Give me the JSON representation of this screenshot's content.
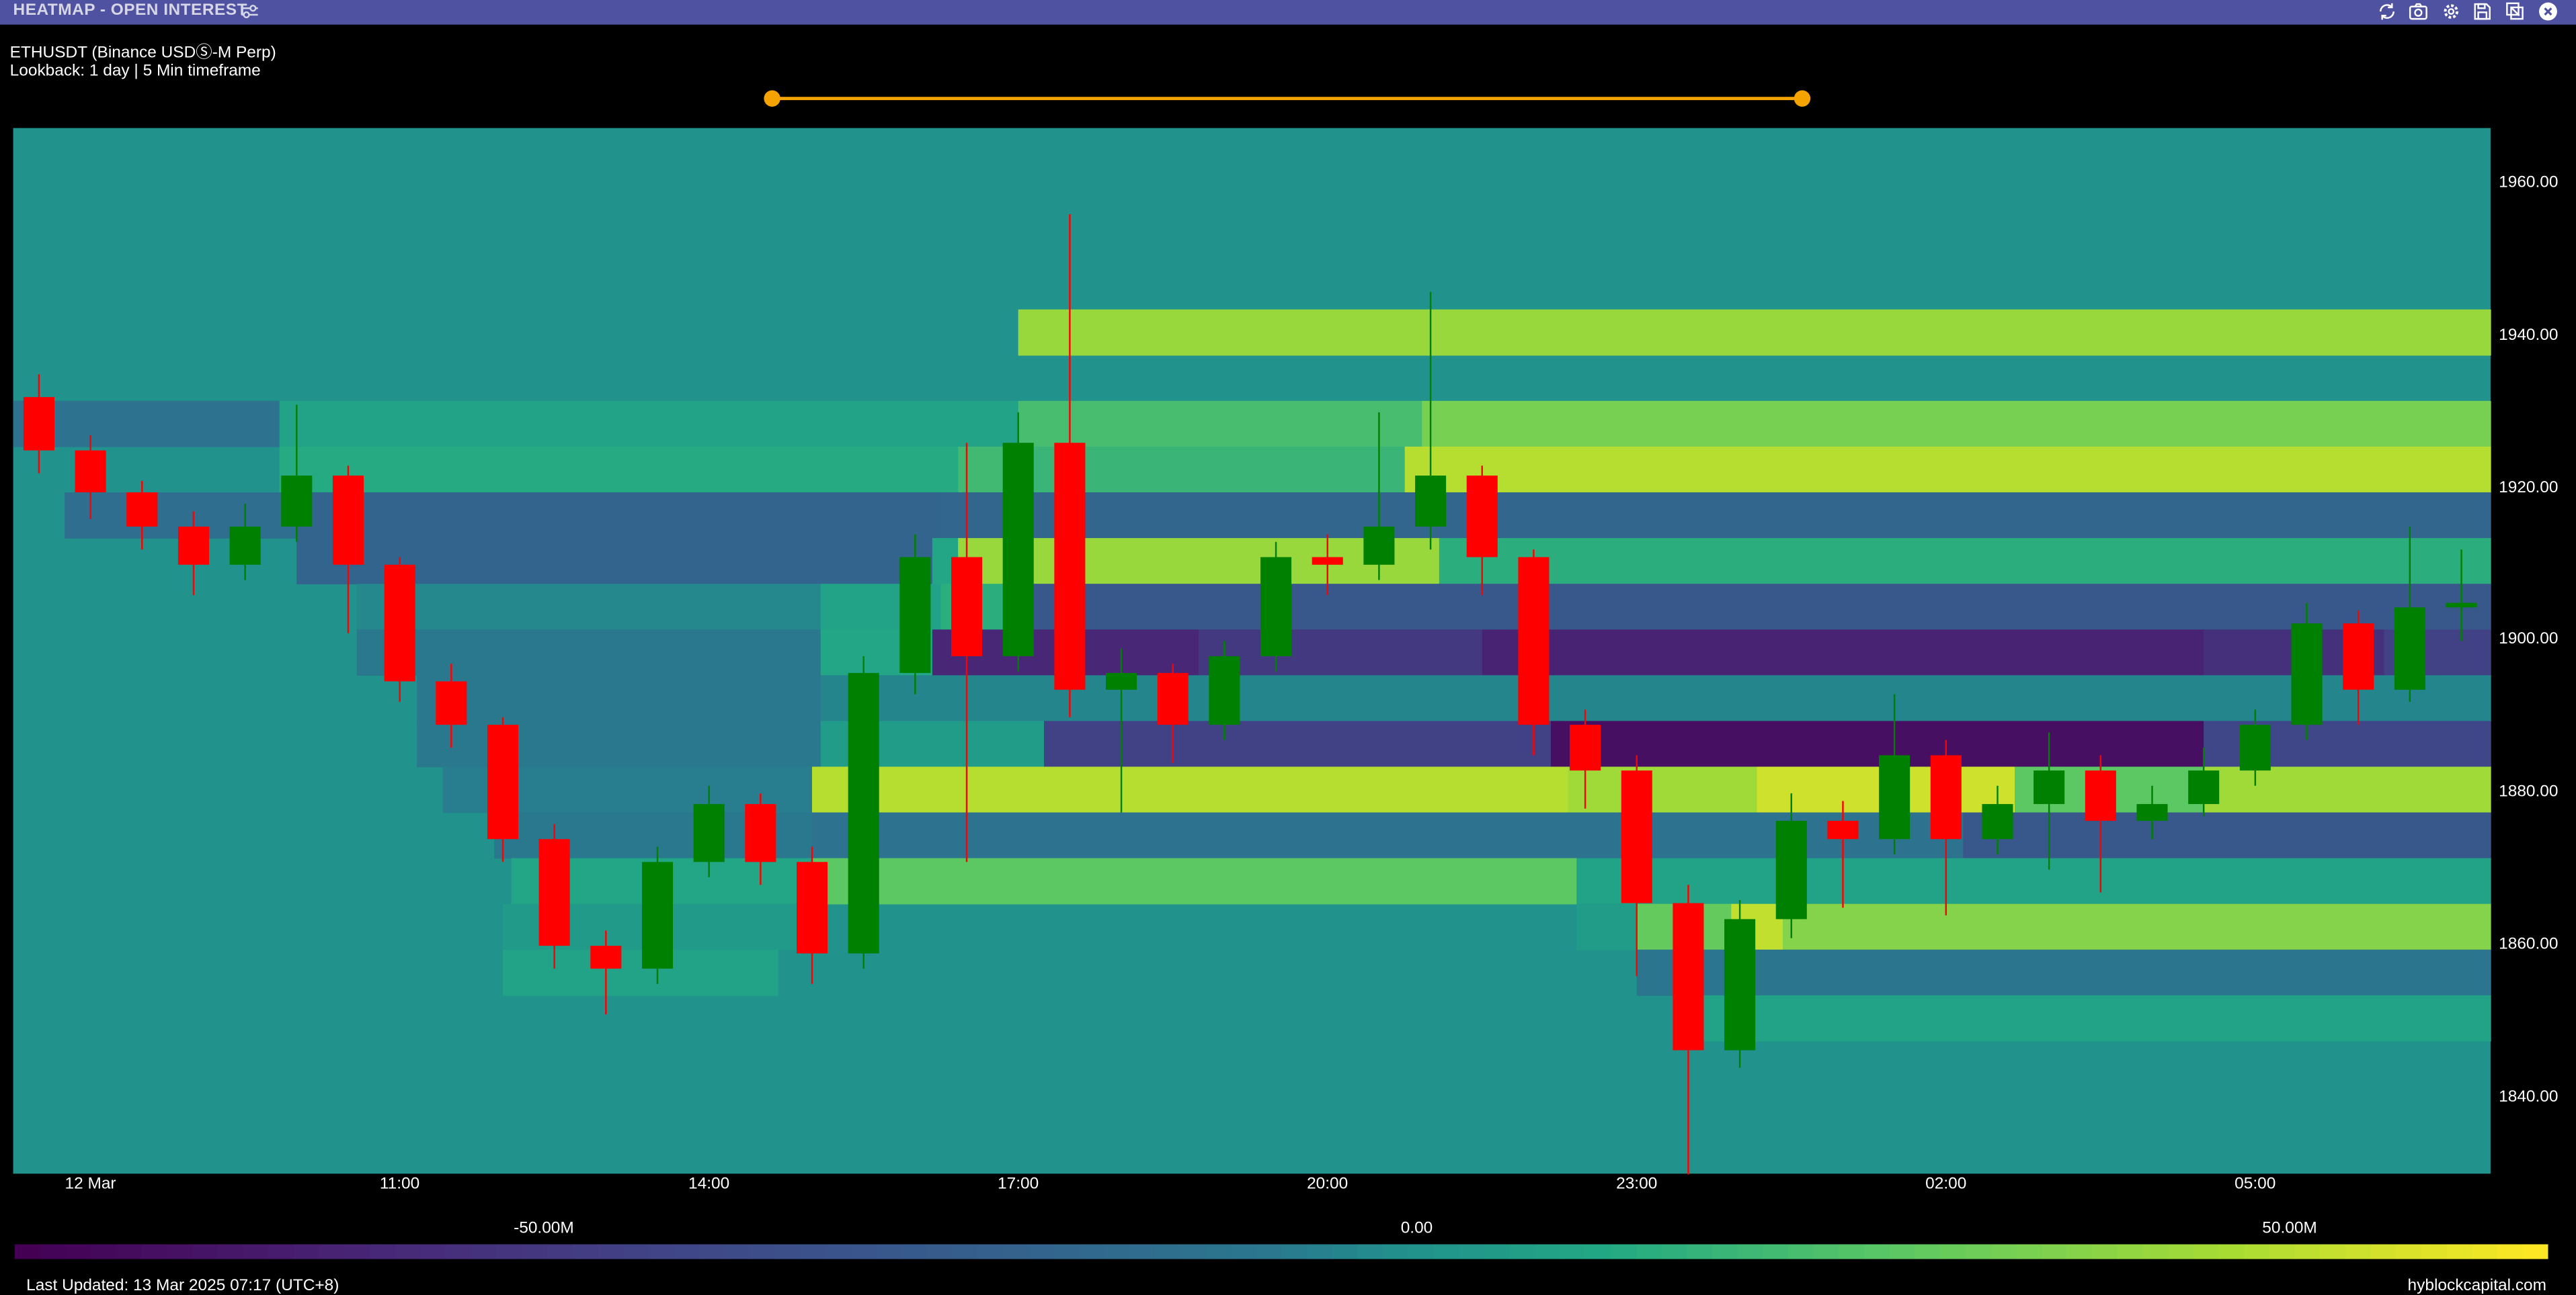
{
  "window": {
    "title": "HEATMAP - OPEN INTEREST",
    "color": "#4f52a0",
    "icons": [
      "sliders-icon",
      "refresh-icon",
      "camera-icon",
      "gear-icon",
      "save-icon",
      "popout-icon",
      "close-icon"
    ]
  },
  "header": {
    "instrument": "ETHUSDT (Binance USDⓈ-M Perp)",
    "lookback": "Lookback: 1 day | 5 Min timeframe"
  },
  "range_slider": {
    "color": "#f5a300"
  },
  "chart_data": {
    "type": "heatmap",
    "title": "",
    "ylim": [
      1830.1,
      1967.3
    ],
    "xlim": [
      "2025-03-12T07:15",
      "2025-03-13T07:17"
    ],
    "y_ticks": [
      "1960.00",
      "1940.00",
      "1920.00",
      "1900.00",
      "1880.00",
      "1860.00",
      "1840.00"
    ],
    "x_ticks": [
      {
        "time": "2025-03-12T08:00",
        "label": "12 Mar"
      },
      {
        "time": "2025-03-12T11:00",
        "label": "11:00"
      },
      {
        "time": "2025-03-12T14:00",
        "label": "14:00"
      },
      {
        "time": "2025-03-12T17:00",
        "label": "17:00"
      },
      {
        "time": "2025-03-12T20:00",
        "label": "20:00"
      },
      {
        "time": "2025-03-12T23:00",
        "label": "23:00"
      },
      {
        "time": "2025-03-13T02:00",
        "label": "02:00"
      },
      {
        "time": "2025-03-13T05:00",
        "label": "05:00"
      }
    ],
    "baseline_value": 0,
    "colorscale": "viridis",
    "color_range": [
      -80.3,
      64.8
    ],
    "colorbar_ticks": [
      {
        "value": -50,
        "label": "-50.00M"
      },
      {
        "value": 0,
        "label": "0.00"
      },
      {
        "value": 50,
        "label": "50.00M"
      }
    ],
    "cells": [
      [
        1937.5,
        1943.5,
        "2025-03-12T17:00",
        "2025-03-13T07:17",
        43
      ],
      [
        1925.5,
        1931.5,
        "2025-03-12T07:15",
        "2025-03-12T09:50",
        -12
      ],
      [
        1925.5,
        1931.5,
        "2025-03-12T09:50",
        "2025-03-12T17:00",
        8
      ],
      [
        1925.5,
        1931.5,
        "2025-03-12T17:00",
        "2025-03-12T20:55",
        22
      ],
      [
        1925.5,
        1931.5,
        "2025-03-12T20:55",
        "2025-03-13T07:17",
        35
      ],
      [
        1919.5,
        1925.5,
        "2025-03-12T09:50",
        "2025-03-12T16:25",
        12
      ],
      [
        1919.5,
        1925.5,
        "2025-03-12T16:25",
        "2025-03-12T17:00",
        20
      ],
      [
        1919.5,
        1925.5,
        "2025-03-12T17:00",
        "2025-03-12T20:45",
        18
      ],
      [
        1919.5,
        1925.5,
        "2025-03-12T20:45",
        "2025-03-13T07:17",
        50
      ],
      [
        1913.5,
        1919.5,
        "2025-03-12T07:45",
        "2025-03-12T10:00",
        -15
      ],
      [
        1913.5,
        1919.5,
        "2025-03-12T10:00",
        "2025-03-12T16:15",
        -22
      ],
      [
        1913.5,
        1919.5,
        "2025-03-12T16:15",
        "2025-03-13T07:17",
        -20
      ],
      [
        1907.5,
        1913.5,
        "2025-03-12T10:00",
        "2025-03-12T16:10",
        -22
      ],
      [
        1907.5,
        1913.5,
        "2025-03-12T16:10",
        "2025-03-12T16:25",
        10
      ],
      [
        1907.5,
        1913.5,
        "2025-03-12T16:25",
        "2025-03-12T21:05",
        43
      ],
      [
        1907.5,
        1913.5,
        "2025-03-12T21:05",
        "2025-03-13T07:17",
        14
      ],
      [
        1901.5,
        1907.5,
        "2025-03-12T10:35",
        "2025-03-12T15:05",
        -3
      ],
      [
        1901.5,
        1907.5,
        "2025-03-12T15:05",
        "2025-03-12T16:15",
        8
      ],
      [
        1901.5,
        1907.5,
        "2025-03-12T16:15",
        "2025-03-12T17:00",
        14
      ],
      [
        1901.5,
        1907.5,
        "2025-03-12T17:00",
        "2025-03-13T07:17",
        -30
      ],
      [
        1895.5,
        1901.5,
        "2025-03-12T10:35",
        "2025-03-12T15:05",
        -8
      ],
      [
        1895.5,
        1901.5,
        "2025-03-12T15:05",
        "2025-03-12T16:10",
        10
      ],
      [
        1895.5,
        1901.5,
        "2025-03-12T16:10",
        "2025-03-12T18:45",
        -60
      ],
      [
        1895.5,
        1901.5,
        "2025-03-12T18:45",
        "2025-03-12T21:30",
        -50
      ],
      [
        1895.5,
        1901.5,
        "2025-03-12T21:30",
        "2025-03-13T04:30",
        -62
      ],
      [
        1895.5,
        1901.5,
        "2025-03-13T04:30",
        "2025-03-13T06:15",
        -55
      ],
      [
        1895.5,
        1901.5,
        "2025-03-13T06:15",
        "2025-03-13T07:17",
        -45
      ],
      [
        1889.5,
        1895.5,
        "2025-03-12T11:10",
        "2025-03-12T15:05",
        -8
      ],
      [
        1889.5,
        1895.5,
        "2025-03-12T15:05",
        "2025-03-13T07:17",
        -4
      ],
      [
        1883.5,
        1889.5,
        "2025-03-12T11:10",
        "2025-03-12T15:05",
        -8
      ],
      [
        1883.5,
        1889.5,
        "2025-03-12T15:05",
        "2025-03-12T17:15",
        5
      ],
      [
        1883.5,
        1889.5,
        "2025-03-12T17:15",
        "2025-03-12T22:10",
        -45
      ],
      [
        1883.5,
        1889.5,
        "2025-03-12T22:10",
        "2025-03-13T04:30",
        -73
      ],
      [
        1883.5,
        1889.5,
        "2025-03-13T04:30",
        "2025-03-13T07:17",
        -42
      ],
      [
        1877.5,
        1883.5,
        "2025-03-12T11:25",
        "2025-03-12T15:00",
        -6
      ],
      [
        1877.5,
        1883.5,
        "2025-03-12T15:00",
        "2025-03-12T22:20",
        50
      ],
      [
        1877.5,
        1883.5,
        "2025-03-12T22:20",
        "2025-03-13T00:10",
        45
      ],
      [
        1877.5,
        1883.5,
        "2025-03-13T00:10",
        "2025-03-13T02:40",
        55
      ],
      [
        1877.5,
        1883.5,
        "2025-03-13T02:40",
        "2025-03-13T04:30",
        28
      ],
      [
        1877.5,
        1883.5,
        "2025-03-13T04:30",
        "2025-03-13T07:17",
        45
      ],
      [
        1871.5,
        1877.5,
        "2025-03-12T11:55",
        "2025-03-12T15:00",
        -8
      ],
      [
        1871.5,
        1877.5,
        "2025-03-12T15:00",
        "2025-03-13T02:10",
        -12
      ],
      [
        1871.5,
        1877.5,
        "2025-03-13T02:10",
        "2025-03-13T07:17",
        -30
      ],
      [
        1865.5,
        1871.5,
        "2025-03-12T12:05",
        "2025-03-12T15:00",
        10
      ],
      [
        1865.5,
        1871.5,
        "2025-03-12T15:00",
        "2025-03-12T22:25",
        28
      ],
      [
        1865.5,
        1871.5,
        "2025-03-12T22:25",
        "2025-03-13T07:17",
        8
      ],
      [
        1859.5,
        1865.5,
        "2025-03-12T12:00",
        "2025-03-12T15:00",
        4
      ],
      [
        1859.5,
        1865.5,
        "2025-03-12T22:25",
        "2025-03-12T23:00",
        5
      ],
      [
        1859.5,
        1865.5,
        "2025-03-12T23:00",
        "2025-03-12T23:55",
        30
      ],
      [
        1859.5,
        1865.5,
        "2025-03-12T23:55",
        "2025-03-13T00:25",
        52
      ],
      [
        1859.5,
        1865.5,
        "2025-03-13T00:25",
        "2025-03-13T07:17",
        38
      ],
      [
        1853.5,
        1859.5,
        "2025-03-12T12:00",
        "2025-03-12T14:40",
        8
      ],
      [
        1853.5,
        1859.5,
        "2025-03-12T23:00",
        "2025-03-13T07:17",
        -10
      ],
      [
        1847.5,
        1853.5,
        "2025-03-12T23:30",
        "2025-03-13T07:17",
        8
      ]
    ],
    "candles": {
      "up_color": "#008000",
      "down_color": "#ff0000",
      "ohlc": [
        [
          "2025-03-12T07:15",
          1932,
          1935,
          1922,
          1925
        ],
        [
          "2025-03-12T07:45",
          1925,
          1927,
          1916,
          1919.5
        ],
        [
          "2025-03-12T08:15",
          1919.5,
          1921,
          1912,
          1915
        ],
        [
          "2025-03-12T08:45",
          1915,
          1917,
          1906,
          1910
        ],
        [
          "2025-03-12T09:15",
          1910,
          1918,
          1908,
          1915
        ],
        [
          "2025-03-12T09:45",
          1915,
          1931,
          1913,
          1921.7
        ],
        [
          "2025-03-12T10:15",
          1921.7,
          1923,
          1901,
          1910
        ],
        [
          "2025-03-12T10:45",
          1910,
          1911,
          1892,
          1894.7
        ],
        [
          "2025-03-12T11:15",
          1894.7,
          1897,
          1886,
          1889
        ],
        [
          "2025-03-12T11:45",
          1889,
          1890,
          1871,
          1874
        ],
        [
          "2025-03-12T12:15",
          1874,
          1876,
          1857,
          1860
        ],
        [
          "2025-03-12T12:45",
          1860,
          1862,
          1851,
          1857
        ],
        [
          "2025-03-12T13:15",
          1857,
          1873,
          1855,
          1871
        ],
        [
          "2025-03-12T13:45",
          1871,
          1881,
          1869,
          1878.6
        ],
        [
          "2025-03-12T14:15",
          1878.6,
          1880,
          1868,
          1871
        ],
        [
          "2025-03-12T14:45",
          1871,
          1873,
          1855,
          1859
        ],
        [
          "2025-03-12T15:15",
          1859,
          1898,
          1857,
          1895.8
        ],
        [
          "2025-03-12T15:45",
          1895.8,
          1914,
          1893,
          1911
        ],
        [
          "2025-03-12T16:15",
          1911,
          1926,
          1871,
          1898
        ],
        [
          "2025-03-12T16:45",
          1898,
          1930,
          1896,
          1926
        ],
        [
          "2025-03-12T17:15",
          1926,
          1956,
          1890,
          1893.6
        ],
        [
          "2025-03-12T17:45",
          1893.6,
          1899,
          1877.5,
          1895.8
        ],
        [
          "2025-03-12T18:15",
          1895.8,
          1897,
          1884,
          1889
        ],
        [
          "2025-03-12T18:45",
          1889,
          1900,
          1887,
          1898
        ],
        [
          "2025-03-12T19:15",
          1898,
          1913,
          1896,
          1911
        ],
        [
          "2025-03-12T19:45",
          1911,
          1914,
          1906,
          1910
        ],
        [
          "2025-03-12T20:15",
          1910,
          1930,
          1908,
          1915
        ],
        [
          "2025-03-12T20:45",
          1915,
          1945.8,
          1912,
          1921.7
        ],
        [
          "2025-03-12T21:15",
          1921.7,
          1923,
          1906,
          1911
        ],
        [
          "2025-03-12T21:45",
          1911,
          1912,
          1885,
          1889
        ],
        [
          "2025-03-12T22:15",
          1889,
          1891,
          1878,
          1883
        ],
        [
          "2025-03-12T22:45",
          1883,
          1885,
          1856,
          1865.6
        ],
        [
          "2025-03-12T23:15",
          1865.6,
          1868,
          1830,
          1846.3
        ],
        [
          "2025-03-12T23:45",
          1846.3,
          1866,
          1844,
          1863.5
        ],
        [
          "2025-03-13T00:15",
          1863.5,
          1880,
          1861,
          1876.4
        ],
        [
          "2025-03-13T00:45",
          1876.4,
          1879,
          1865,
          1874
        ],
        [
          "2025-03-13T01:15",
          1874,
          1893,
          1872,
          1885
        ],
        [
          "2025-03-13T01:45",
          1885,
          1887,
          1864,
          1874
        ],
        [
          "2025-03-13T02:15",
          1874,
          1881,
          1872,
          1878.6
        ],
        [
          "2025-03-13T02:45",
          1878.6,
          1888,
          1870,
          1883
        ],
        [
          "2025-03-13T03:15",
          1883,
          1885,
          1867,
          1876.4
        ],
        [
          "2025-03-13T03:45",
          1876.4,
          1881,
          1874,
          1878.6
        ],
        [
          "2025-03-13T04:15",
          1878.6,
          1886,
          1877,
          1883
        ],
        [
          "2025-03-13T04:45",
          1883,
          1891,
          1881,
          1889
        ],
        [
          "2025-03-13T05:15",
          1889,
          1905,
          1887,
          1902.3
        ],
        [
          "2025-03-13T05:45",
          1902.3,
          1904,
          1889,
          1893.6
        ],
        [
          "2025-03-13T06:15",
          1893.6,
          1915,
          1892,
          1904.4
        ],
        [
          "2025-03-13T06:45",
          1904.4,
          1912,
          1900,
          1905
        ]
      ]
    }
  },
  "footer": {
    "last_updated": "Last Updated: 13 Mar 2025 07:17 (UTC+8)",
    "brand": "hyblockcapital.com"
  }
}
